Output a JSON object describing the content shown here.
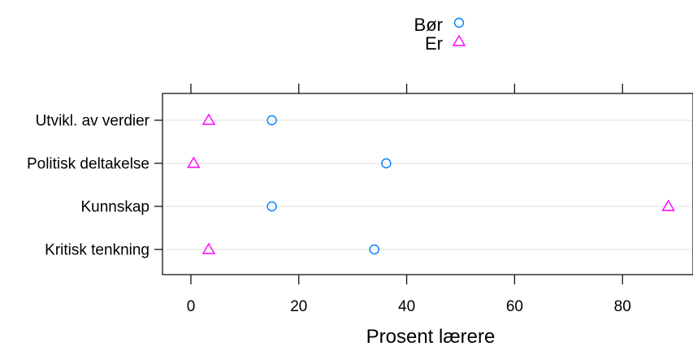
{
  "chart_data": {
    "type": "dotplot",
    "title": "",
    "xlabel": "Prosent lærere",
    "ylabel": "",
    "xlim": [
      -5,
      93
    ],
    "xticks": [
      0,
      20,
      40,
      60,
      80
    ],
    "grid": "horizontal",
    "legend_position": "top-center",
    "categories": [
      "Utvikl. av verdier",
      "Politisk deltakelse",
      "Kunnskap",
      "Kritisk tenkning"
    ],
    "series": [
      {
        "name": "Bør",
        "marker": "circle",
        "color": "#0080ff",
        "values": [
          15,
          36.2,
          15,
          34
        ]
      },
      {
        "name": "Er",
        "marker": "triangle",
        "color": "#ff00ff",
        "values": [
          3.3,
          0.5,
          88.5,
          3.3
        ]
      }
    ]
  }
}
